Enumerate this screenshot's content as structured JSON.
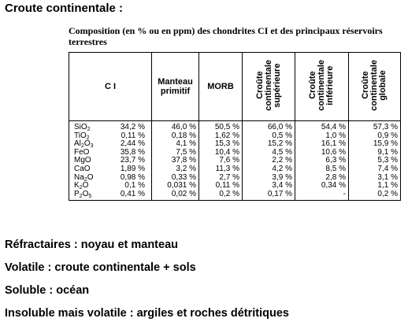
{
  "heading": "Croute continentale :",
  "caption": "Composition (en % ou en ppm) des chondrites CI et des principaux réservoirs terrestres",
  "table": {
    "headers": {
      "ci": "C I",
      "manteau": [
        "Manteau",
        "primitif"
      ],
      "morb": "MORB",
      "sup": [
        "Croûte",
        "continentale",
        "supérieure"
      ],
      "inf": [
        "Croûte",
        "continentale",
        "inférieure"
      ],
      "glob": [
        "Croûte",
        "continentale",
        "globale"
      ]
    },
    "rows": [
      {
        "ox": "SiO",
        "sub": "2",
        "ci": "34,2 %",
        "mp": "46,0 %",
        "morb": "50,5 %",
        "sup": "66,0 %",
        "inf": "54,4 %",
        "glob": "57,3 %"
      },
      {
        "ox": "TiO",
        "sub": "2",
        "ci": "0,11 %",
        "mp": "0,18 %",
        "morb": "1,62 %",
        "sup": "0,5 %",
        "inf": "1,0 %",
        "glob": "0,9 %"
      },
      {
        "ox": "Al",
        "sub": "2",
        "ox2": "O",
        "sub2": "3",
        "ci": "2,44 %",
        "mp": "4,1 %",
        "morb": "15,3 %",
        "sup": "15,2 %",
        "inf": "16,1 %",
        "glob": "15,9 %"
      },
      {
        "ox": "FeO",
        "ci": "35,8 %",
        "mp": "7,5 %",
        "morb": "10,4 %",
        "sup": "4,5 %",
        "inf": "10,6 %",
        "glob": "9,1 %"
      },
      {
        "ox": "MgO",
        "ci": "23,7 %",
        "mp": "37,8 %",
        "morb": "7,6 %",
        "sup": "2,2 %",
        "inf": "6,3 %",
        "glob": "5,3 %"
      },
      {
        "ox": "CaO",
        "ci": "1,89 %",
        "mp": "3,2 %",
        "morb": "11,3 %",
        "sup": "4,2 %",
        "inf": "8,5 %",
        "glob": "7,4 %"
      },
      {
        "ox": "Na",
        "sub": "2",
        "ox2": "O",
        "ci": "0,98 %",
        "mp": "0,33 %",
        "morb": "2,7 %",
        "sup": "3,9 %",
        "inf": "2,8 %",
        "glob": "3,1 %"
      },
      {
        "ox": "K",
        "sub": "2",
        "ox2": "O",
        "ci": "0,1 %",
        "mp": "0,031 %",
        "morb": "0,11 %",
        "sup": "3,4 %",
        "inf": "0,34 %",
        "glob": "1,1 %"
      },
      {
        "ox": "P",
        "sub": "2",
        "ox2": "O",
        "sub2": "5",
        "ci": "0,41 %",
        "mp": "0,02 %",
        "morb": "0,2 %",
        "sup": "0,17 %",
        "inf": "-",
        "glob": "0,2 %"
      }
    ]
  },
  "notes": [
    "Réfractaires : noyau et manteau",
    "Volatile : croute continentale + sols",
    "Soluble : océan",
    "Insoluble mais volatile : argiles et roches détritiques"
  ]
}
